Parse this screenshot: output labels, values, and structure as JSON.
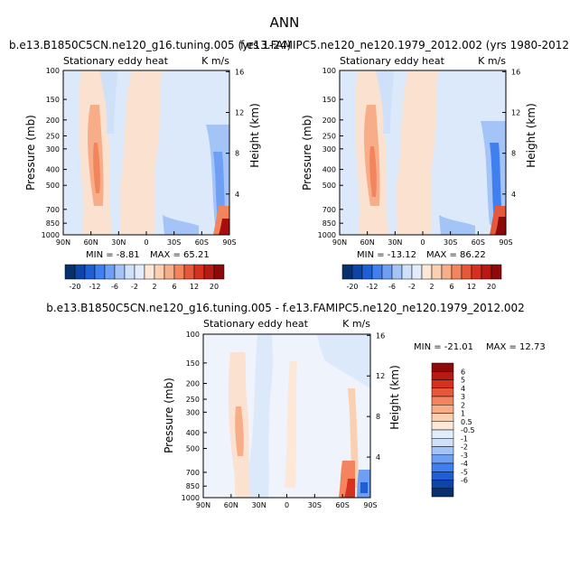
{
  "page_title": "ANN",
  "colors": {
    "neg_scale": [
      "#08306b",
      "#0c44a8",
      "#1f5fd6",
      "#3f7ff0",
      "#6e9ff5",
      "#a4c3f7",
      "#cfe0f9",
      "#e2ecfb"
    ],
    "pos_scale": [
      "#fde8d8",
      "#fbd0b2",
      "#f7ad87",
      "#f2855d",
      "#e6583a",
      "#d6311f",
      "#b81912",
      "#8c0a0a"
    ],
    "background_field": "#dce9fb",
    "warm_field": "#fbe2d0",
    "peak": "#a80d0d"
  },
  "chart_data": [
    {
      "id": "top-left",
      "type": "heatmap",
      "title": "b.e13.B1850C5CN.ne120_g16.tuning.005 (yrs 1-24)",
      "subtitle_left": "Stationary eddy heat",
      "units": "K m/s",
      "xlabel": "",
      "ylabel": "Pressure (mb)",
      "ylabel_right": "Height (km)",
      "x_ticks": [
        "90N",
        "60N",
        "30N",
        "0",
        "30S",
        "60S",
        "90S"
      ],
      "y_ticks": [
        "100",
        "150",
        "200",
        "250",
        "300",
        "400",
        "500",
        "700",
        "850",
        "1000"
      ],
      "y_ticks_values": [
        100,
        150,
        200,
        250,
        300,
        400,
        500,
        700,
        850,
        1000
      ],
      "y_right_ticks": [
        "16",
        "12",
        "8",
        "4"
      ],
      "ylim": [
        1000,
        100
      ],
      "xlim": [
        90,
        -90
      ],
      "min_label": "MIN = -8.81",
      "max_label": "MAX = 65.21",
      "min": -8.81,
      "max": 65.21
    },
    {
      "id": "top-right",
      "type": "heatmap",
      "title": "f.e13.FAMIPC5.ne120_ne120.1979_2012.002 (yrs 1980-2012)",
      "subtitle_left": "Stationary eddy heat",
      "units": "K m/s",
      "xlabel": "",
      "ylabel": "Pressure (mb)",
      "ylabel_right": "Height (km)",
      "x_ticks": [
        "90N",
        "60N",
        "30N",
        "0",
        "30S",
        "60S",
        "90S"
      ],
      "y_ticks": [
        "100",
        "150",
        "200",
        "250",
        "300",
        "400",
        "500",
        "700",
        "850",
        "1000"
      ],
      "y_ticks_values": [
        100,
        150,
        200,
        250,
        300,
        400,
        500,
        700,
        850,
        1000
      ],
      "y_right_ticks": [
        "16",
        "12",
        "8",
        "4"
      ],
      "ylim": [
        1000,
        100
      ],
      "xlim": [
        90,
        -90
      ],
      "min_label": "MIN = -13.12",
      "max_label": "MAX = 86.22",
      "min": -13.12,
      "max": 86.22
    },
    {
      "id": "bottom-diff",
      "type": "heatmap",
      "title": "b.e13.B1850C5CN.ne120_g16.tuning.005 - f.e13.FAMIPC5.ne120_ne120.1979_2012.002",
      "subtitle_left": "Stationary eddy heat",
      "units": "K m/s",
      "xlabel": "",
      "ylabel": "Pressure (mb)",
      "ylabel_right": "Height (km)",
      "x_ticks": [
        "90N",
        "60N",
        "30N",
        "0",
        "30S",
        "60S",
        "90S"
      ],
      "y_ticks": [
        "100",
        "150",
        "200",
        "250",
        "300",
        "400",
        "500",
        "700",
        "850",
        "1000"
      ],
      "y_ticks_values": [
        100,
        150,
        200,
        250,
        300,
        400,
        500,
        700,
        850,
        1000
      ],
      "y_right_ticks": [
        "16",
        "12",
        "8",
        "4"
      ],
      "ylim": [
        1000,
        100
      ],
      "xlim": [
        90,
        -90
      ],
      "min_label": "MIN = -21.01",
      "max_label": "MAX = 12.73",
      "min": -21.01,
      "max": 12.73
    }
  ],
  "colorbar_top": {
    "labels": [
      "-20",
      "-12",
      "-6",
      "-2",
      "2",
      "6",
      "12",
      "20"
    ]
  },
  "colorbar_diff": {
    "labels": [
      "6",
      "5",
      "4",
      "3",
      "2",
      "1",
      "0.5",
      "-0.5",
      "-1",
      "-2",
      "-3",
      "-4",
      "-5",
      "-6"
    ]
  }
}
